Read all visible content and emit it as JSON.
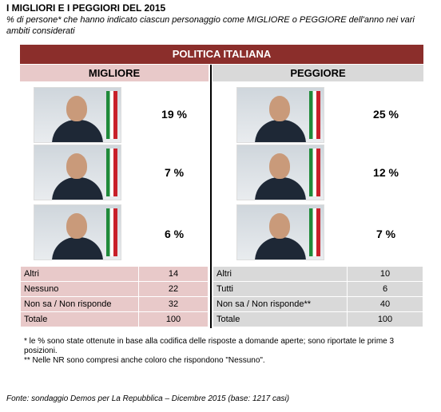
{
  "title": "I MIGLIORI E I PEGGIORI DEL 2015",
  "subtitle": "% di persone* che hanno indicato ciascun personaggio come MIGLIORE o PEGGIORE dell'anno nei vari ambiti considerati",
  "banner": "POLITICA ITALIANA",
  "columns": {
    "best": "MIGLIORE",
    "worst": "PEGGIORE"
  },
  "chart_data": {
    "type": "table",
    "title": "POLITICA ITALIANA",
    "best": [
      {
        "value": 19,
        "label": "19 %"
      },
      {
        "value": 7,
        "label": "7 %"
      },
      {
        "value": 6,
        "label": "6 %"
      }
    ],
    "worst": [
      {
        "value": 25,
        "label": "25 %"
      },
      {
        "value": 12,
        "label": "12 %"
      },
      {
        "value": 7,
        "label": "7 %"
      }
    ],
    "best_other": [
      {
        "label": "Altri",
        "value": "14"
      },
      {
        "label": "Nessuno",
        "value": "22"
      },
      {
        "label": "Non sa / Non risponde",
        "value": "32"
      },
      {
        "label": "Totale",
        "value": "100"
      }
    ],
    "worst_other": [
      {
        "label": "Altri",
        "value": "10"
      },
      {
        "label": "Tutti",
        "value": "6"
      },
      {
        "label": "Non sa / Non risponde**",
        "value": "40"
      },
      {
        "label": "Totale",
        "value": "100"
      }
    ]
  },
  "notes": [
    "* le % sono state ottenute in base alla codifica delle risposte a domande aperte; sono riportate le prime 3 posizioni.",
    "** Nelle NR sono compresi anche coloro che rispondono \"Nessuno\"."
  ],
  "source": "Fonte: sondaggio Demos per La Repubblica – Dicembre 2015 (base: 1217 casi)",
  "colors": {
    "banner": "#8b2e2b",
    "best_shade": "#e8c9c9",
    "worst_shade": "#d9d9d9"
  }
}
